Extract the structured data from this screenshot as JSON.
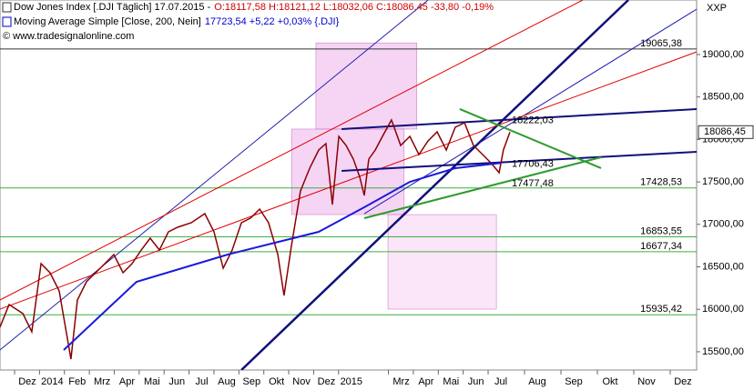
{
  "chart_data": {
    "type": "line",
    "header": [
      {
        "text": "Dow Jones Index [.DJI  Täglich] 17.07.2015 -",
        "detail": "O:18117,58 H:18121,12 L:18032,06 C:18086,45 -33,80 -0,19%",
        "color": "#d00000"
      },
      {
        "text": "Moving Average Simple [Close, 200, Nein]",
        "detail": "17723,54 +5,22 +0,03% {.DJI}",
        "color": "#0000cc"
      }
    ],
    "copyright": "© www.tradesignalonline.com",
    "corner_label": "XXP",
    "xlim": [
      -1.1,
      24.4
    ],
    "ylim": [
      15285,
      19642
    ],
    "xticks": [
      {
        "value": 0,
        "label": "Dez"
      },
      {
        "value": 1,
        "label": "2014"
      },
      {
        "value": 2,
        "label": "Feb"
      },
      {
        "value": 3,
        "label": "Mrz"
      },
      {
        "value": 4,
        "label": "Apr"
      },
      {
        "value": 5,
        "label": "Mai"
      },
      {
        "value": 6,
        "label": "Jun"
      },
      {
        "value": 7,
        "label": "Jul"
      },
      {
        "value": 8,
        "label": "Aug"
      },
      {
        "value": 9,
        "label": "Sep"
      },
      {
        "value": 10,
        "label": "Okt"
      },
      {
        "value": 11,
        "label": "Nov"
      },
      {
        "value": 12,
        "label": "Dez"
      },
      {
        "value": 13,
        "label": "2015"
      },
      {
        "value": 15,
        "label": "Mrz"
      },
      {
        "value": 16,
        "label": "Apr"
      },
      {
        "value": 17,
        "label": "Mai"
      },
      {
        "value": 18,
        "label": "Jun"
      },
      {
        "value": 19,
        "label": "Jul"
      },
      {
        "value": 20,
        "label": "Aug"
      },
      {
        "value": 21,
        "label": "Sep"
      },
      {
        "value": 22,
        "label": "Okt"
      },
      {
        "value": 23,
        "label": "Nov"
      },
      {
        "value": 24,
        "label": "Dez"
      }
    ],
    "yticks": [
      {
        "value": 15500,
        "label": "15500,00"
      },
      {
        "value": 16000,
        "label": "16000,00"
      },
      {
        "value": 16500,
        "label": "16500,00"
      },
      {
        "value": 17000,
        "label": "17000,00"
      },
      {
        "value": 17500,
        "label": "17500,00"
      },
      {
        "value": 18000,
        "label": "18000,00"
      },
      {
        "value": 18500,
        "label": "18500,00"
      },
      {
        "value": 19000,
        "label": "19000,00"
      }
    ],
    "series": [
      {
        "color": "#8b0000",
        "x": [
          -1.1,
          -0.73,
          -0.18,
          0.18,
          0.55,
          0.91,
          1.28,
          1.75,
          2.01,
          2.37,
          2.74,
          3.11,
          3.47,
          3.84,
          4.2,
          4.57,
          4.93,
          5.3,
          5.66,
          6.03,
          6.58,
          7.12,
          7.49,
          7.86,
          8.22,
          8.59,
          8.95,
          9.32,
          9.68,
          10.05,
          10.3,
          10.6,
          10.96,
          11.33,
          11.69,
          11.98,
          12.24,
          12.5,
          12.79,
          13.08,
          13.34,
          13.52,
          13.7,
          13.96,
          14.25,
          14.61,
          14.98,
          15.35,
          15.71,
          16.08,
          16.44,
          16.81,
          17.17,
          17.54,
          17.9,
          18.27,
          18.63,
          18.93,
          19.07,
          19.25
        ],
        "values": [
          15788,
          16056,
          15950,
          15735,
          16537,
          16430,
          16216,
          15413,
          16109,
          16323,
          16430,
          16537,
          16645,
          16430,
          16537,
          16698,
          16837,
          16698,
          16912,
          16966,
          17019,
          17126,
          16912,
          16484,
          16698,
          17019,
          17073,
          17180,
          17019,
          16645,
          16163,
          16752,
          17394,
          17662,
          17876,
          17951,
          17233,
          18036,
          17929,
          17769,
          17555,
          17340,
          17769,
          17876,
          18036,
          18229,
          17929,
          18036,
          17822,
          17983,
          18090,
          17876,
          18143,
          18197,
          17929,
          17822,
          17715,
          17608,
          17876,
          18086.45
        ]
      },
      {
        "color": "#1a1adb",
        "x": [
          1.46,
          4.38,
          8.04,
          10.23,
          11.69,
          13.52,
          15.35,
          17.17,
          19.0
        ],
        "values": [
          15520,
          16323,
          16645,
          16805,
          16912,
          17201,
          17501,
          17662,
          17723.54
        ]
      }
    ],
    "price_marker": {
      "value": 18086.45,
      "label": "18086,45"
    },
    "levels": [
      {
        "value": 19065.38,
        "label": "19065,38",
        "color": "#333333"
      },
      {
        "value": 17428.53,
        "label": "17428,53",
        "color": "#3cb043"
      },
      {
        "value": 16853.55,
        "label": "16853,55",
        "color": "#3cb043"
      },
      {
        "value": 16677.34,
        "label": "16677,34",
        "color": "#3cb043"
      },
      {
        "value": 15935.42,
        "label": "15935,42",
        "color": "#3cb043"
      }
    ],
    "annotations": [
      {
        "x": 19.25,
        "value": 18222.03,
        "label": "18222,03",
        "color": "#1a1a8c"
      },
      {
        "x": 19.25,
        "value": 17706.43,
        "label": "17706,43",
        "color": "#1a1a8c"
      },
      {
        "x": 19.25,
        "value": 17477.48,
        "label": "17477,48",
        "color": "#2e9a2e"
      }
    ],
    "zones": [
      {
        "x": [
          11.58,
          15.63
        ],
        "y": [
          18122,
          19137
        ],
        "color": "#f0b8ec"
      },
      {
        "x": [
          10.6,
          15.12
        ],
        "y": [
          17115,
          18122
        ],
        "color": "#f0b8ec"
      },
      {
        "x": [
          14.47,
          18.82
        ],
        "y": [
          16002,
          17115
        ],
        "color": "#f8d4f4"
      }
    ],
    "trendlines": [
      {
        "color": "#10107a",
        "width": 2.5,
        "points": [
          [
            8.59,
            15285
          ],
          [
            22.5,
            19642
          ]
        ]
      },
      {
        "color": "#2020b0",
        "width": 1,
        "points": [
          [
            -1.1,
            15520
          ],
          [
            16.08,
            19642
          ]
        ]
      },
      {
        "color": "#2020b0",
        "width": 1,
        "points": [
          [
            13.52,
            17126
          ],
          [
            24.38,
            19535
          ]
        ]
      },
      {
        "color": "#e00000",
        "width": 1,
        "points": [
          [
            -1.1,
            16109
          ],
          [
            21.25,
            19642
          ]
        ]
      },
      {
        "color": "#e00000",
        "width": 1,
        "points": [
          [
            -1.1,
            16002
          ],
          [
            24.38,
            19032
          ]
        ]
      },
      {
        "color": "#10107a",
        "width": 2,
        "points": [
          [
            12.61,
            18122
          ],
          [
            24.38,
            18358
          ]
        ]
      },
      {
        "color": "#10107a",
        "width": 2,
        "points": [
          [
            12.61,
            17630
          ],
          [
            24.38,
            17854
          ]
        ]
      },
      {
        "color": "#2e9a2e",
        "width": 2,
        "points": [
          [
            17.35,
            18358
          ],
          [
            21.75,
            17662
          ]
        ]
      },
      {
        "color": "#2e9a2e",
        "width": 2,
        "points": [
          [
            13.52,
            17073
          ],
          [
            21.75,
            17790
          ]
        ]
      }
    ]
  }
}
